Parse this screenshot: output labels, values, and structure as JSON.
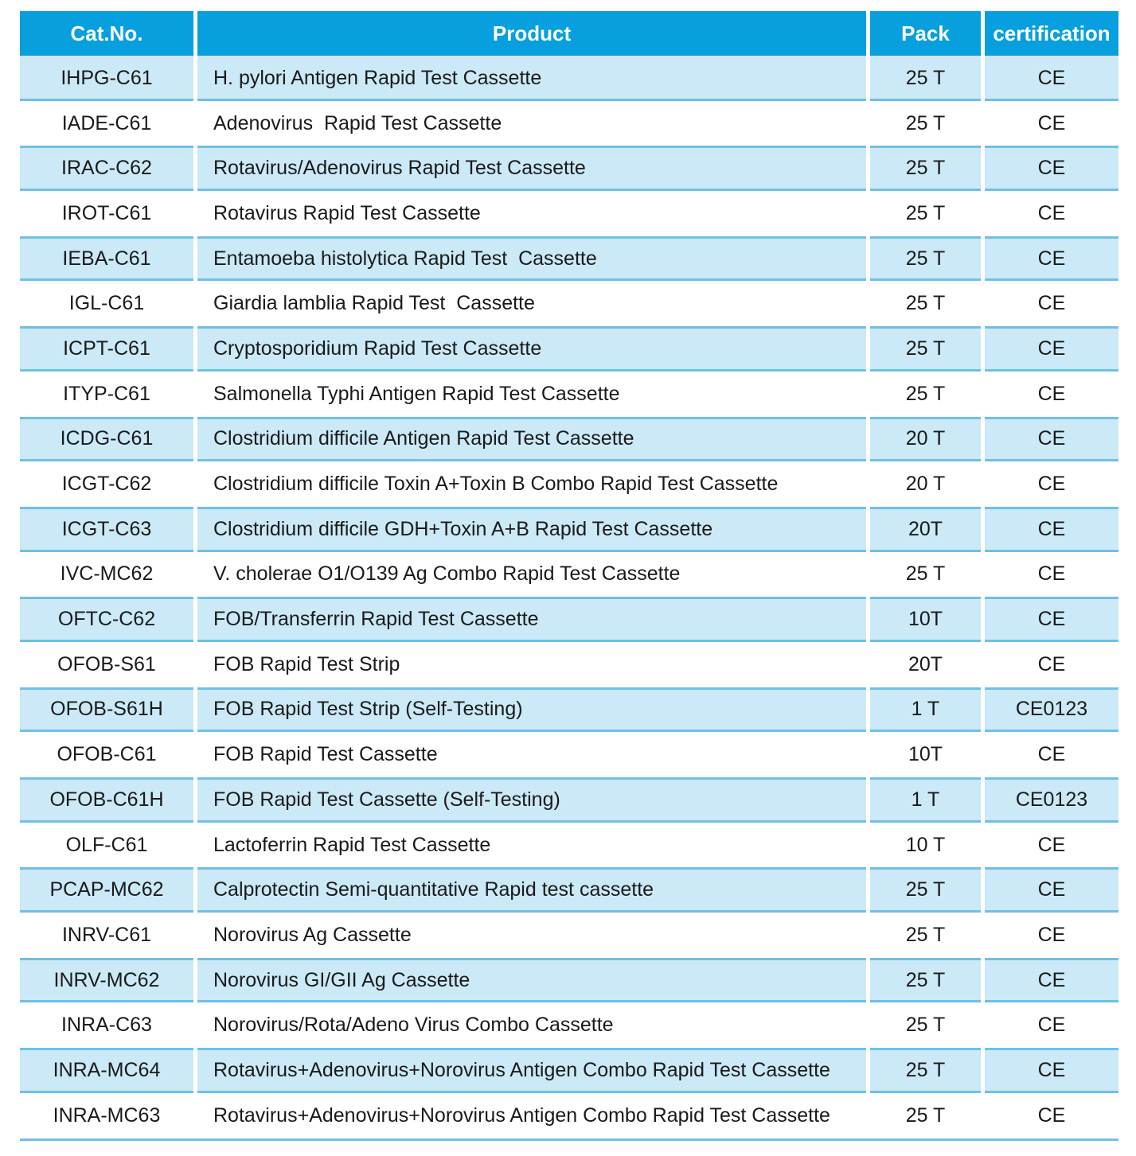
{
  "colors": {
    "page_bg": "#FFFFFF",
    "header_bg": "#089FDE",
    "header_text": "#FFFFFF",
    "row_shade": "#CBE9F7",
    "row_border": "#70BFE9",
    "body_text": "#1A1A1A"
  },
  "table": {
    "columns": [
      {
        "key": "cat",
        "label": "Cat.No."
      },
      {
        "key": "product",
        "label": "Product"
      },
      {
        "key": "pack",
        "label": "Pack"
      },
      {
        "key": "cert",
        "label": "certification"
      }
    ],
    "rows": [
      {
        "cat": "IHPG-C61",
        "product": "H. pylori Antigen Rapid Test Cassette",
        "pack": "25 T",
        "cert": "CE"
      },
      {
        "cat": "IADE-C61",
        "product": "Adenovirus  Rapid Test Cassette",
        "pack": "25 T",
        "cert": "CE"
      },
      {
        "cat": "IRAC-C62",
        "product": "Rotavirus/Adenovirus Rapid Test Cassette",
        "pack": "25 T",
        "cert": "CE"
      },
      {
        "cat": "IROT-C61",
        "product": "Rotavirus Rapid Test Cassette",
        "pack": "25 T",
        "cert": "CE"
      },
      {
        "cat": "IEBA-C61",
        "product": "Entamoeba histolytica Rapid Test  Cassette",
        "pack": "25 T",
        "cert": "CE"
      },
      {
        "cat": "IGL-C61",
        "product": "Giardia lamblia Rapid Test  Cassette",
        "pack": "25 T",
        "cert": "CE"
      },
      {
        "cat": "ICPT-C61",
        "product": "Cryptosporidium Rapid Test Cassette",
        "pack": "25 T",
        "cert": "CE"
      },
      {
        "cat": "ITYP-C61",
        "product": "Salmonella Typhi Antigen Rapid Test Cassette",
        "pack": "25 T",
        "cert": "CE"
      },
      {
        "cat": "ICDG-C61",
        "product": "Clostridium difficile Antigen Rapid Test Cassette",
        "pack": "20 T",
        "cert": "CE"
      },
      {
        "cat": "ICGT-C62",
        "product": "Clostridium difficile Toxin A+Toxin B Combo Rapid Test Cassette",
        "pack": "20 T",
        "cert": "CE"
      },
      {
        "cat": "ICGT-C63",
        "product": "Clostridium difficile GDH+Toxin A+B Rapid Test Cassette",
        "pack": "20T",
        "cert": "CE"
      },
      {
        "cat": "IVC-MC62",
        "product": "V. cholerae O1/O139 Ag Combo Rapid Test Cassette",
        "pack": "25 T",
        "cert": "CE"
      },
      {
        "cat": "OFTC-C62",
        "product": "FOB/Transferrin Rapid Test Cassette",
        "pack": "10T",
        "cert": "CE"
      },
      {
        "cat": "OFOB-S61",
        "product": "FOB Rapid Test Strip",
        "pack": "20T",
        "cert": "CE"
      },
      {
        "cat": "OFOB-S61H",
        "product": "FOB Rapid Test Strip (Self-Testing)",
        "pack": "1 T",
        "cert": "CE0123"
      },
      {
        "cat": "OFOB-C61",
        "product": "FOB Rapid Test Cassette",
        "pack": "10T",
        "cert": "CE"
      },
      {
        "cat": "OFOB-C61H",
        "product": "FOB Rapid Test Cassette (Self-Testing)",
        "pack": "1 T",
        "cert": "CE0123"
      },
      {
        "cat": "OLF-C61",
        "product": "Lactoferrin Rapid Test Cassette",
        "pack": "10 T",
        "cert": "CE"
      },
      {
        "cat": "PCAP-MC62",
        "product": "Calprotectin Semi-quantitative Rapid test cassette",
        "pack": "25 T",
        "cert": "CE"
      },
      {
        "cat": "INRV-C61",
        "product": "Norovirus Ag Cassette",
        "pack": "25 T",
        "cert": "CE"
      },
      {
        "cat": "INRV-MC62",
        "product": "Norovirus GI/GII Ag Cassette",
        "pack": "25 T",
        "cert": "CE"
      },
      {
        "cat": "INRA-C63",
        "product": "Norovirus/Rota/Adeno Virus Combo Cassette",
        "pack": "25 T",
        "cert": "CE"
      },
      {
        "cat": "INRA-MC64",
        "product": "Rotavirus+Adenovirus+Norovirus Antigen Combo Rapid Test Cassette",
        "pack": "25 T",
        "cert": "CE"
      },
      {
        "cat": "INRA-MC63",
        "product": "Rotavirus+Adenovirus+Norovirus Antigen Combo Rapid Test Cassette",
        "pack": "25 T",
        "cert": "CE"
      }
    ]
  }
}
